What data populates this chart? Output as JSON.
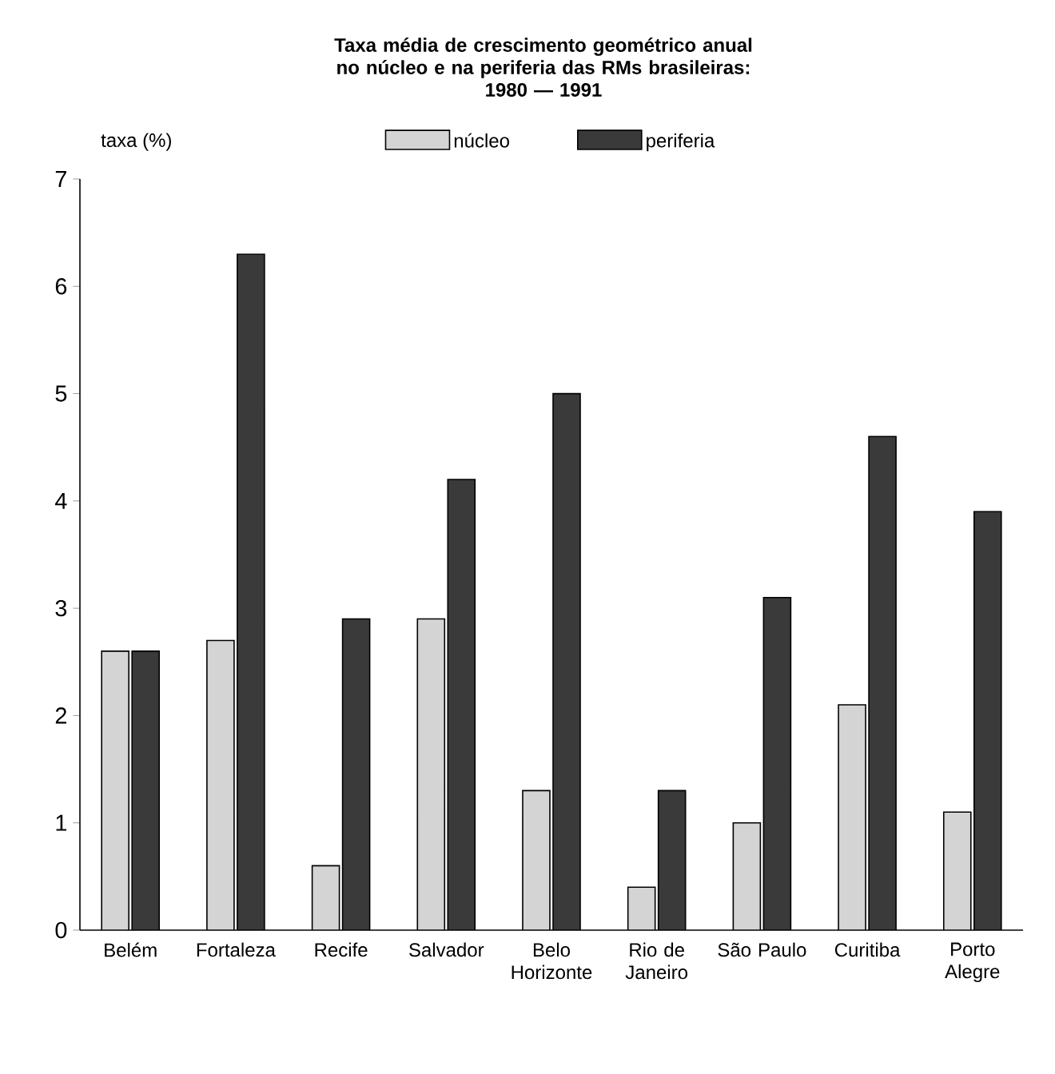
{
  "chart_data": {
    "type": "bar",
    "title": "Taxa média de crescimento geométrico anual no núcleo e na periferia das RMs brasileiras:",
    "subtitle": "1980 — 1991",
    "ylabel": "taxa (%)",
    "categories": [
      "Belém",
      "Fortaleza",
      "Recife",
      "Salvador",
      "Belo Horizonte",
      "Rio de Janeiro",
      "São Paulo",
      "Curitiba",
      "Porto Alegre"
    ],
    "series": [
      {
        "name": "núcleo",
        "color": "#d4d4d4",
        "values": [
          2.6,
          2.7,
          0.6,
          2.9,
          1.3,
          0.4,
          1.0,
          2.1,
          1.1
        ]
      },
      {
        "name": "periferia",
        "color": "#3a3a3a",
        "values": [
          2.6,
          6.3,
          2.9,
          4.2,
          5.0,
          1.3,
          3.1,
          4.6,
          3.9
        ]
      }
    ],
    "ylim": [
      0,
      7
    ],
    "yticks": [
      0,
      1,
      2,
      3,
      4,
      5,
      6,
      7
    ],
    "grid": false,
    "legend": "top"
  }
}
